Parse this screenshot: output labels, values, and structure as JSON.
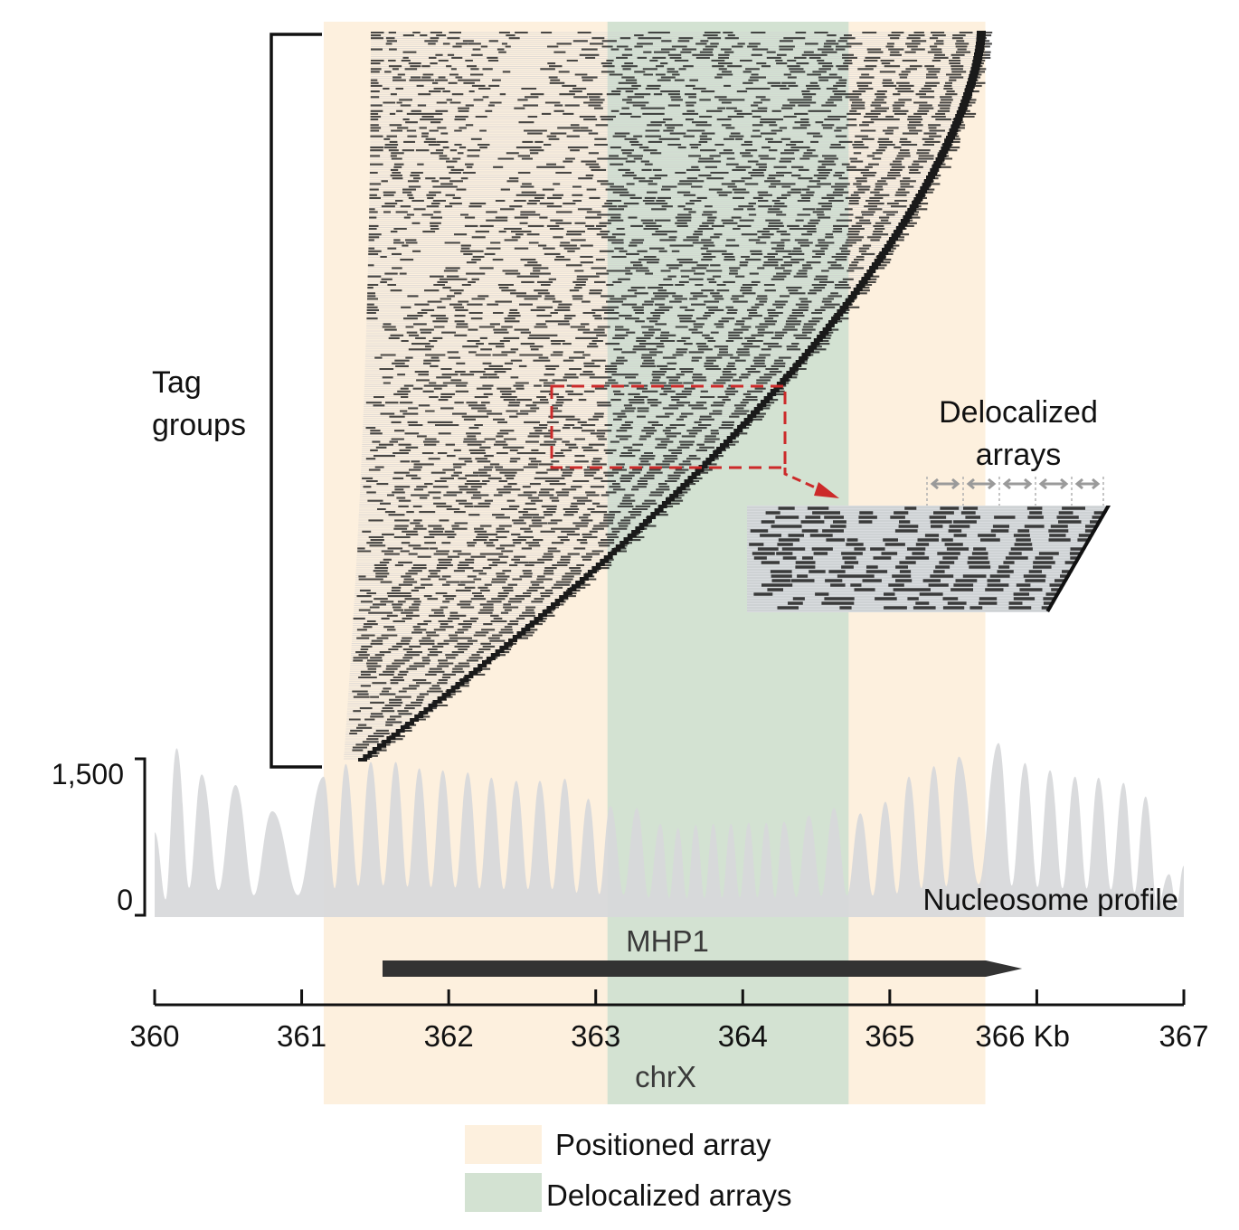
{
  "labels": {
    "tag_groups": [
      "Tag",
      "groups"
    ],
    "inset_title": [
      "Delocalized",
      "arrays"
    ],
    "profile_label": "Nucleosome profile",
    "gene_name": "MHP1",
    "chromosome": "chrX",
    "legend": [
      {
        "label": "Positioned array",
        "color": "#fdf0de"
      },
      {
        "label": "Delocalized arrays",
        "color": "#d3e2d2"
      }
    ]
  },
  "colors": {
    "positioned_band": "#fdf0de",
    "delocalized_band": "#d3e2d2",
    "profile_fill": "#d7d8da",
    "gene_bar": "#333333",
    "read_mark": "#222222",
    "callout": "#cc2a2a",
    "inset_bg": "#d9dcdf",
    "arrow_grey": "#9a9a9a"
  },
  "chart_data": {
    "type": "area",
    "xlabel": "Kb",
    "x_ticks": [
      360,
      361,
      362,
      363,
      364,
      365,
      366,
      367
    ],
    "x_tick_labels": [
      "360",
      "361",
      "362",
      "363",
      "364",
      "365",
      "366 Kb",
      "367"
    ],
    "xlim": [
      360,
      367
    ],
    "ylim": [
      0,
      1500
    ],
    "y_ticks": [
      0,
      1500
    ],
    "y_tick_labels": [
      "0",
      "1,500"
    ],
    "regions": [
      {
        "label": "Positioned array",
        "start": 361.15,
        "end": 365.65
      },
      {
        "label": "Delocalized arrays",
        "start": 363.08,
        "end": 364.72
      }
    ],
    "gene": {
      "name": "MHP1",
      "start": 361.55,
      "end": 365.9,
      "strand": "+"
    },
    "nucleosome_peaks": [
      {
        "x": 360.0,
        "y": 800
      },
      {
        "x": 360.15,
        "y": 1600
      },
      {
        "x": 360.32,
        "y": 1350
      },
      {
        "x": 360.55,
        "y": 1250
      },
      {
        "x": 360.8,
        "y": 1000
      },
      {
        "x": 361.15,
        "y": 1330
      },
      {
        "x": 361.3,
        "y": 1450
      },
      {
        "x": 361.47,
        "y": 1470
      },
      {
        "x": 361.64,
        "y": 1470
      },
      {
        "x": 361.8,
        "y": 1410
      },
      {
        "x": 361.96,
        "y": 1390
      },
      {
        "x": 362.13,
        "y": 1370
      },
      {
        "x": 362.29,
        "y": 1320
      },
      {
        "x": 362.46,
        "y": 1290
      },
      {
        "x": 362.62,
        "y": 1290
      },
      {
        "x": 362.79,
        "y": 1310
      },
      {
        "x": 362.95,
        "y": 1120
      },
      {
        "x": 363.1,
        "y": 1050
      },
      {
        "x": 363.28,
        "y": 1030
      },
      {
        "x": 363.44,
        "y": 880
      },
      {
        "x": 363.56,
        "y": 840
      },
      {
        "x": 363.68,
        "y": 870
      },
      {
        "x": 363.8,
        "y": 880
      },
      {
        "x": 363.92,
        "y": 880
      },
      {
        "x": 364.04,
        "y": 890
      },
      {
        "x": 364.16,
        "y": 890
      },
      {
        "x": 364.28,
        "y": 900
      },
      {
        "x": 364.45,
        "y": 960
      },
      {
        "x": 364.62,
        "y": 1030
      },
      {
        "x": 364.8,
        "y": 980
      },
      {
        "x": 364.97,
        "y": 1090
      },
      {
        "x": 365.13,
        "y": 1330
      },
      {
        "x": 365.3,
        "y": 1430
      },
      {
        "x": 365.47,
        "y": 1520
      },
      {
        "x": 365.74,
        "y": 1650
      },
      {
        "x": 365.92,
        "y": 1460
      },
      {
        "x": 366.09,
        "y": 1390
      },
      {
        "x": 366.26,
        "y": 1330
      },
      {
        "x": 366.42,
        "y": 1320
      },
      {
        "x": 366.59,
        "y": 1270
      },
      {
        "x": 366.74,
        "y": 1140
      },
      {
        "x": 366.9,
        "y": 400
      },
      {
        "x": 367.0,
        "y": 480
      }
    ]
  }
}
